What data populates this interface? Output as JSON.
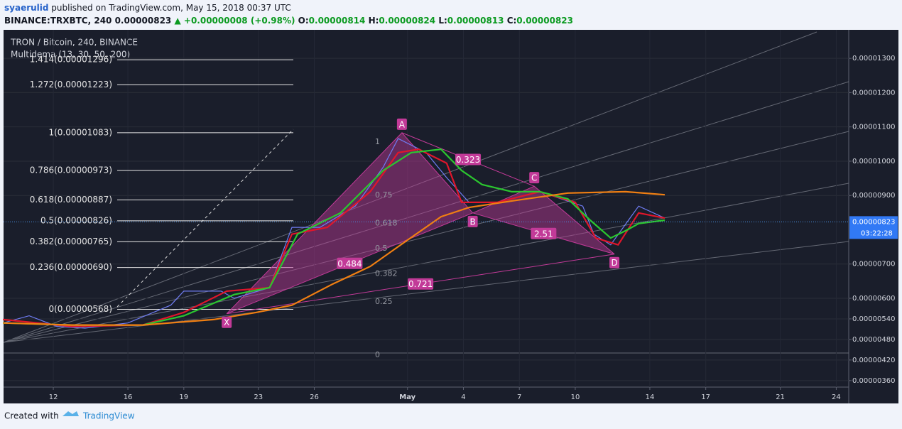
{
  "header": {
    "user": "syaerulid",
    "published": " published on TradingView.com, May 15, 2018 00:37 UTC",
    "symbol": "BINANCE:TRXBTC, 240",
    "price": "0.00000823",
    "change": "▲ +0.00000008 (+0.98%)",
    "open_label": "O:",
    "open": "0.00000814",
    "high_label": "H:",
    "high": "0.00000824",
    "low_label": "L:",
    "low": "0.00000813",
    "close_label": "C:",
    "close": "0.00000823"
  },
  "chart_data": {
    "type": "line",
    "title": "TRON / Bitcoin, 240, BINANCE",
    "subtitle": "Multidema (13, 30, 50, 200)",
    "xlim": [
      9.33,
      54.67
    ],
    "xticks": [
      12,
      16,
      19,
      23,
      26,
      {
        "value": 31,
        "label": "May"
      },
      {
        "value": 34,
        "label": "4"
      },
      {
        "value": 37,
        "label": "7"
      },
      {
        "value": 40,
        "label": "10"
      },
      {
        "value": 44,
        "label": "14"
      },
      {
        "value": 47,
        "label": "17"
      },
      {
        "value": 51,
        "label": "21"
      },
      {
        "value": 54,
        "label": "24"
      }
    ],
    "ylim": [
      3.41e-06,
      1.377e-05
    ],
    "yticks": [
      {
        "value": 3.6e-06,
        "label": "0.00000360"
      },
      {
        "value": 4.2e-06,
        "label": "0.00000420"
      },
      {
        "value": 4.8e-06,
        "label": "0.00000480"
      },
      {
        "value": 5.4e-06,
        "label": "0.00000540"
      },
      {
        "value": 6e-06,
        "label": "0.00000600"
      },
      {
        "value": 7e-06,
        "label": "0.00000700"
      },
      {
        "value": 9e-06,
        "label": "0.00000900"
      },
      {
        "value": 1e-05,
        "label": "0.00001000"
      },
      {
        "value": 1.1e-05,
        "label": "0.00001100"
      },
      {
        "value": 1.2e-05,
        "label": "0.00001200"
      },
      {
        "value": 1.3e-05,
        "label": "0.00001300"
      }
    ],
    "grid": true,
    "series": [
      {
        "color": "#6f7cf2",
        "x": [
          9.3,
          10.7,
          12.2,
          13.7,
          16.0,
          18.3,
          19.0,
          21.0,
          21.7,
          23.6,
          24.8,
          26.3,
          28.2,
          29.7,
          30.5,
          32.0,
          33.1,
          34.3,
          35.8,
          38.1,
          40.4,
          41.0,
          41.9,
          43.4,
          44.8
        ],
        "values": [
          5.28e-06,
          5.49e-06,
          5.18e-06,
          5.13e-06,
          5.28e-06,
          5.8e-06,
          6.21e-06,
          6.21e-06,
          6e-06,
          6.31e-06,
          8.07e-06,
          8.07e-06,
          8.69e-06,
          9.83e-06,
          1.066e-05,
          1.025e-05,
          9.52e-06,
          8.8e-06,
          8.8e-06,
          9.11e-06,
          8.69e-06,
          7.87e-06,
          7.56e-06,
          8.69e-06,
          8.34e-06
        ]
      },
      {
        "color": "#e0162b",
        "x": [
          9.3,
          13.0,
          16.8,
          19.0,
          21.3,
          23.6,
          24.8,
          26.7,
          29.0,
          30.5,
          31.6,
          33.1,
          33.9,
          35.8,
          38.1,
          40.0,
          41.1,
          42.3,
          43.4,
          44.8
        ],
        "values": [
          5.38e-06,
          5.18e-06,
          5.22e-06,
          5.59e-06,
          6.21e-06,
          6.31e-06,
          7.87e-06,
          8.07e-06,
          9.11e-06,
          1.025e-05,
          1.035e-05,
          9.94e-06,
          8.8e-06,
          8.8e-06,
          9.11e-06,
          8.8e-06,
          7.76e-06,
          7.56e-06,
          8.49e-06,
          8.34e-06
        ]
      },
      {
        "color": "#2bc72f",
        "x": [
          9.3,
          13.0,
          16.8,
          19.0,
          21.7,
          23.6,
          25.1,
          27.4,
          29.7,
          31.2,
          32.8,
          33.9,
          35.0,
          36.6,
          38.1,
          39.6,
          40.8,
          41.9,
          42.7,
          43.4,
          44.8
        ],
        "values": [
          5.28e-06,
          5.22e-06,
          5.22e-06,
          5.49e-06,
          6.11e-06,
          6.31e-06,
          7.87e-06,
          8.49e-06,
          9.73e-06,
          1.025e-05,
          1.035e-05,
          9.73e-06,
          9.32e-06,
          9.11e-06,
          9.11e-06,
          8.9e-06,
          8.28e-06,
          7.76e-06,
          7.97e-06,
          8.18e-06,
          8.28e-06
        ]
      },
      {
        "color": "#f07f12",
        "x": [
          9.3,
          13.0,
          16.8,
          20.6,
          22.9,
          24.8,
          27.0,
          29.0,
          30.9,
          32.8,
          34.3,
          36.6,
          39.6,
          42.7,
          44.8
        ],
        "values": [
          5.28e-06,
          5.22e-06,
          5.22e-06,
          5.38e-06,
          5.59e-06,
          5.8e-06,
          6.42e-06,
          6.93e-06,
          7.66e-06,
          8.38e-06,
          8.65e-06,
          8.84e-06,
          9.07e-06,
          9.11e-06,
          9.02e-06
        ]
      }
    ],
    "last_price": {
      "value": 8.23e-06,
      "label": "0.00000823"
    },
    "countdown": "03:22:28",
    "fib_levels": [
      {
        "value": 1.296e-05,
        "label": "1.414(0.00001296)"
      },
      {
        "value": 1.223e-05,
        "label": "1.272(0.00001223)"
      },
      {
        "value": 1.083e-05,
        "label": "1(0.00001083)"
      },
      {
        "value": 9.73e-06,
        "label": "0.786(0.00000973)"
      },
      {
        "value": 8.87e-06,
        "label": "0.618(0.00000887)"
      },
      {
        "value": 8.26e-06,
        "label": "0.5(0.00000826)"
      },
      {
        "value": 7.65e-06,
        "label": "0.382(0.00000765)"
      },
      {
        "value": 6.9e-06,
        "label": "0.236(0.00000690)"
      },
      {
        "value": 5.68e-06,
        "label": "0(0.00000568)"
      }
    ],
    "retracement_levels": [
      1,
      0.75,
      0.618,
      0.5,
      0.382,
      0.25,
      0
    ],
    "pattern": {
      "points": [
        {
          "label": "X",
          "x": 21.3,
          "y": 5.55e-06
        },
        {
          "label": "A",
          "x": 30.7,
          "y": 1.083e-05
        },
        {
          "label": "B",
          "x": 34.5,
          "y": 8.49e-06
        },
        {
          "label": "C",
          "x": 37.8,
          "y": 9.27e-06
        },
        {
          "label": "D",
          "x": 42.1,
          "y": 7.29e-06
        }
      ],
      "ratios": [
        0.323,
        2.51,
        0.484,
        0.721
      ]
    }
  },
  "footer": {
    "created": "Created with",
    "brand": "TradingView"
  }
}
